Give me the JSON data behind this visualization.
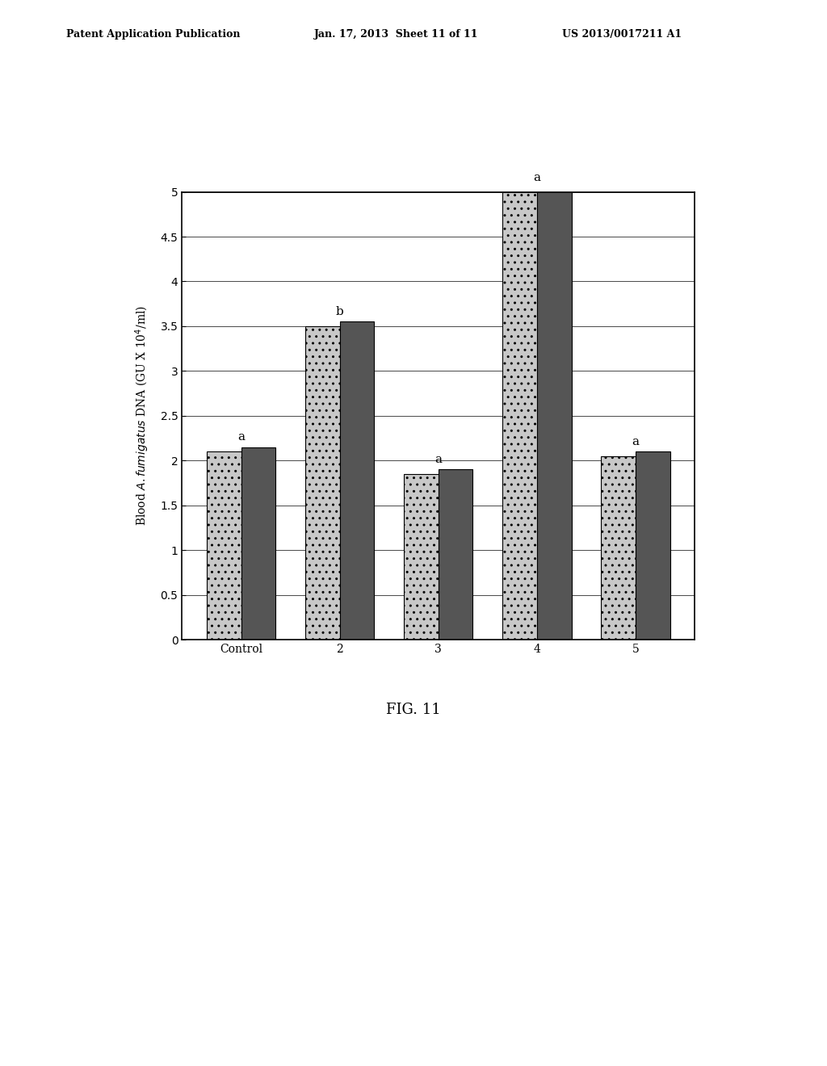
{
  "categories": [
    "Control",
    "2",
    "3",
    "4",
    "5"
  ],
  "bar1_values": [
    2.1,
    3.5,
    1.85,
    5.0,
    2.05
  ],
  "bar2_values": [
    2.15,
    3.55,
    1.9,
    5.05,
    2.1
  ],
  "bar_labels": [
    "a",
    "b",
    "a",
    "a",
    "a"
  ],
  "ylabel": "Blood A. fumigatus DNA (GU X 10⁴/ml)",
  "xlabel_groups": [
    "Control",
    "2",
    "3",
    "4",
    "5"
  ],
  "ylim": [
    0,
    5
  ],
  "yticks": [
    0,
    0.5,
    1,
    1.5,
    2,
    2.5,
    3,
    3.5,
    4,
    4.5,
    5
  ],
  "fig_caption": "FIG. 11",
  "header_left": "Patent Application Publication",
  "header_mid": "Jan. 17, 2013  Sheet 11 of 11",
  "header_right": "US 2013/0017211 A1",
  "bar_color_light": "#b8b8b8",
  "bar_color_dark": "#404040",
  "bar_hatch_light": ".",
  "bar_hatch_dark": ""
}
